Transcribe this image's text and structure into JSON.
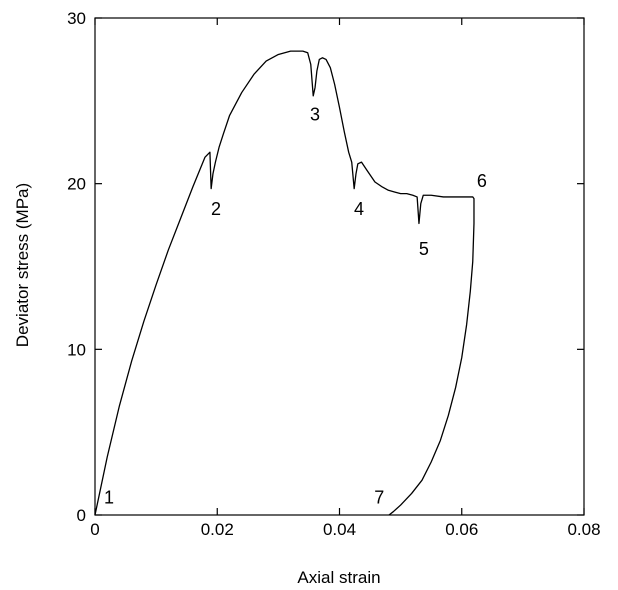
{
  "chart_data": {
    "type": "line",
    "xlabel": "Axial strain",
    "ylabel": "Deviator stress (MPa)",
    "xlim": [
      0,
      0.08
    ],
    "ylim": [
      0,
      30
    ],
    "x_ticks": [
      "0",
      "0.02",
      "0.04",
      "0.06",
      "0.08"
    ],
    "y_ticks": [
      "0",
      "10",
      "20",
      "30"
    ],
    "grid": false,
    "legend": "none",
    "line_color": "#000000",
    "series": [
      {
        "x": [
          0,
          0.002,
          0.004,
          0.006,
          0.008,
          0.01,
          0.012,
          0.014,
          0.016,
          0.018,
          0.0188,
          0.019,
          0.0193,
          0.0197,
          0.0203,
          0.021,
          0.022,
          0.024,
          0.026,
          0.028,
          0.03,
          0.032,
          0.033,
          0.034,
          0.0348,
          0.0353,
          0.0357,
          0.036,
          0.0363,
          0.0367,
          0.0372,
          0.0378,
          0.0385,
          0.0392,
          0.04,
          0.0408,
          0.0415,
          0.042,
          0.0424,
          0.0427,
          0.043,
          0.0436,
          0.0445,
          0.0458,
          0.047,
          0.048,
          0.049,
          0.05,
          0.051,
          0.052,
          0.0527,
          0.053,
          0.0533,
          0.0537,
          0.055,
          0.057,
          0.059,
          0.061,
          0.0618,
          0.062,
          0.062,
          0.0618,
          0.0614,
          0.0608,
          0.06,
          0.059,
          0.0578,
          0.0565,
          0.055,
          0.0535,
          0.0518,
          0.05,
          0.0488,
          0.0481
        ],
        "y": [
          0,
          3.5,
          6.6,
          9.3,
          11.7,
          13.9,
          16.0,
          17.9,
          19.8,
          21.6,
          21.9,
          19.7,
          20.6,
          21.3,
          22.2,
          23.0,
          24.1,
          25.5,
          26.6,
          27.4,
          27.8,
          28.0,
          28.0,
          28.0,
          27.9,
          27.2,
          25.3,
          25.8,
          26.8,
          27.5,
          27.6,
          27.5,
          27.0,
          26.0,
          24.6,
          23.1,
          21.9,
          21.3,
          19.7,
          20.6,
          21.2,
          21.3,
          20.8,
          20.1,
          19.8,
          19.6,
          19.5,
          19.4,
          19.4,
          19.3,
          19.2,
          17.6,
          18.8,
          19.3,
          19.3,
          19.2,
          19.2,
          19.2,
          19.2,
          19.1,
          17.6,
          15.3,
          13.5,
          11.5,
          9.5,
          7.7,
          6.0,
          4.5,
          3.2,
          2.1,
          1.3,
          0.6,
          0.2,
          0
        ]
      }
    ],
    "annotations": [
      {
        "text": "1",
        "x": 0.0023,
        "y": 0.7
      },
      {
        "text": "2",
        "x": 0.0198,
        "y": 18.1
      },
      {
        "text": "3",
        "x": 0.036,
        "y": 23.8
      },
      {
        "text": "4",
        "x": 0.0432,
        "y": 18.1
      },
      {
        "text": "5",
        "x": 0.0538,
        "y": 15.7
      },
      {
        "text": "6",
        "x": 0.0633,
        "y": 19.8
      },
      {
        "text": "7",
        "x": 0.0465,
        "y": 0.7
      }
    ]
  }
}
